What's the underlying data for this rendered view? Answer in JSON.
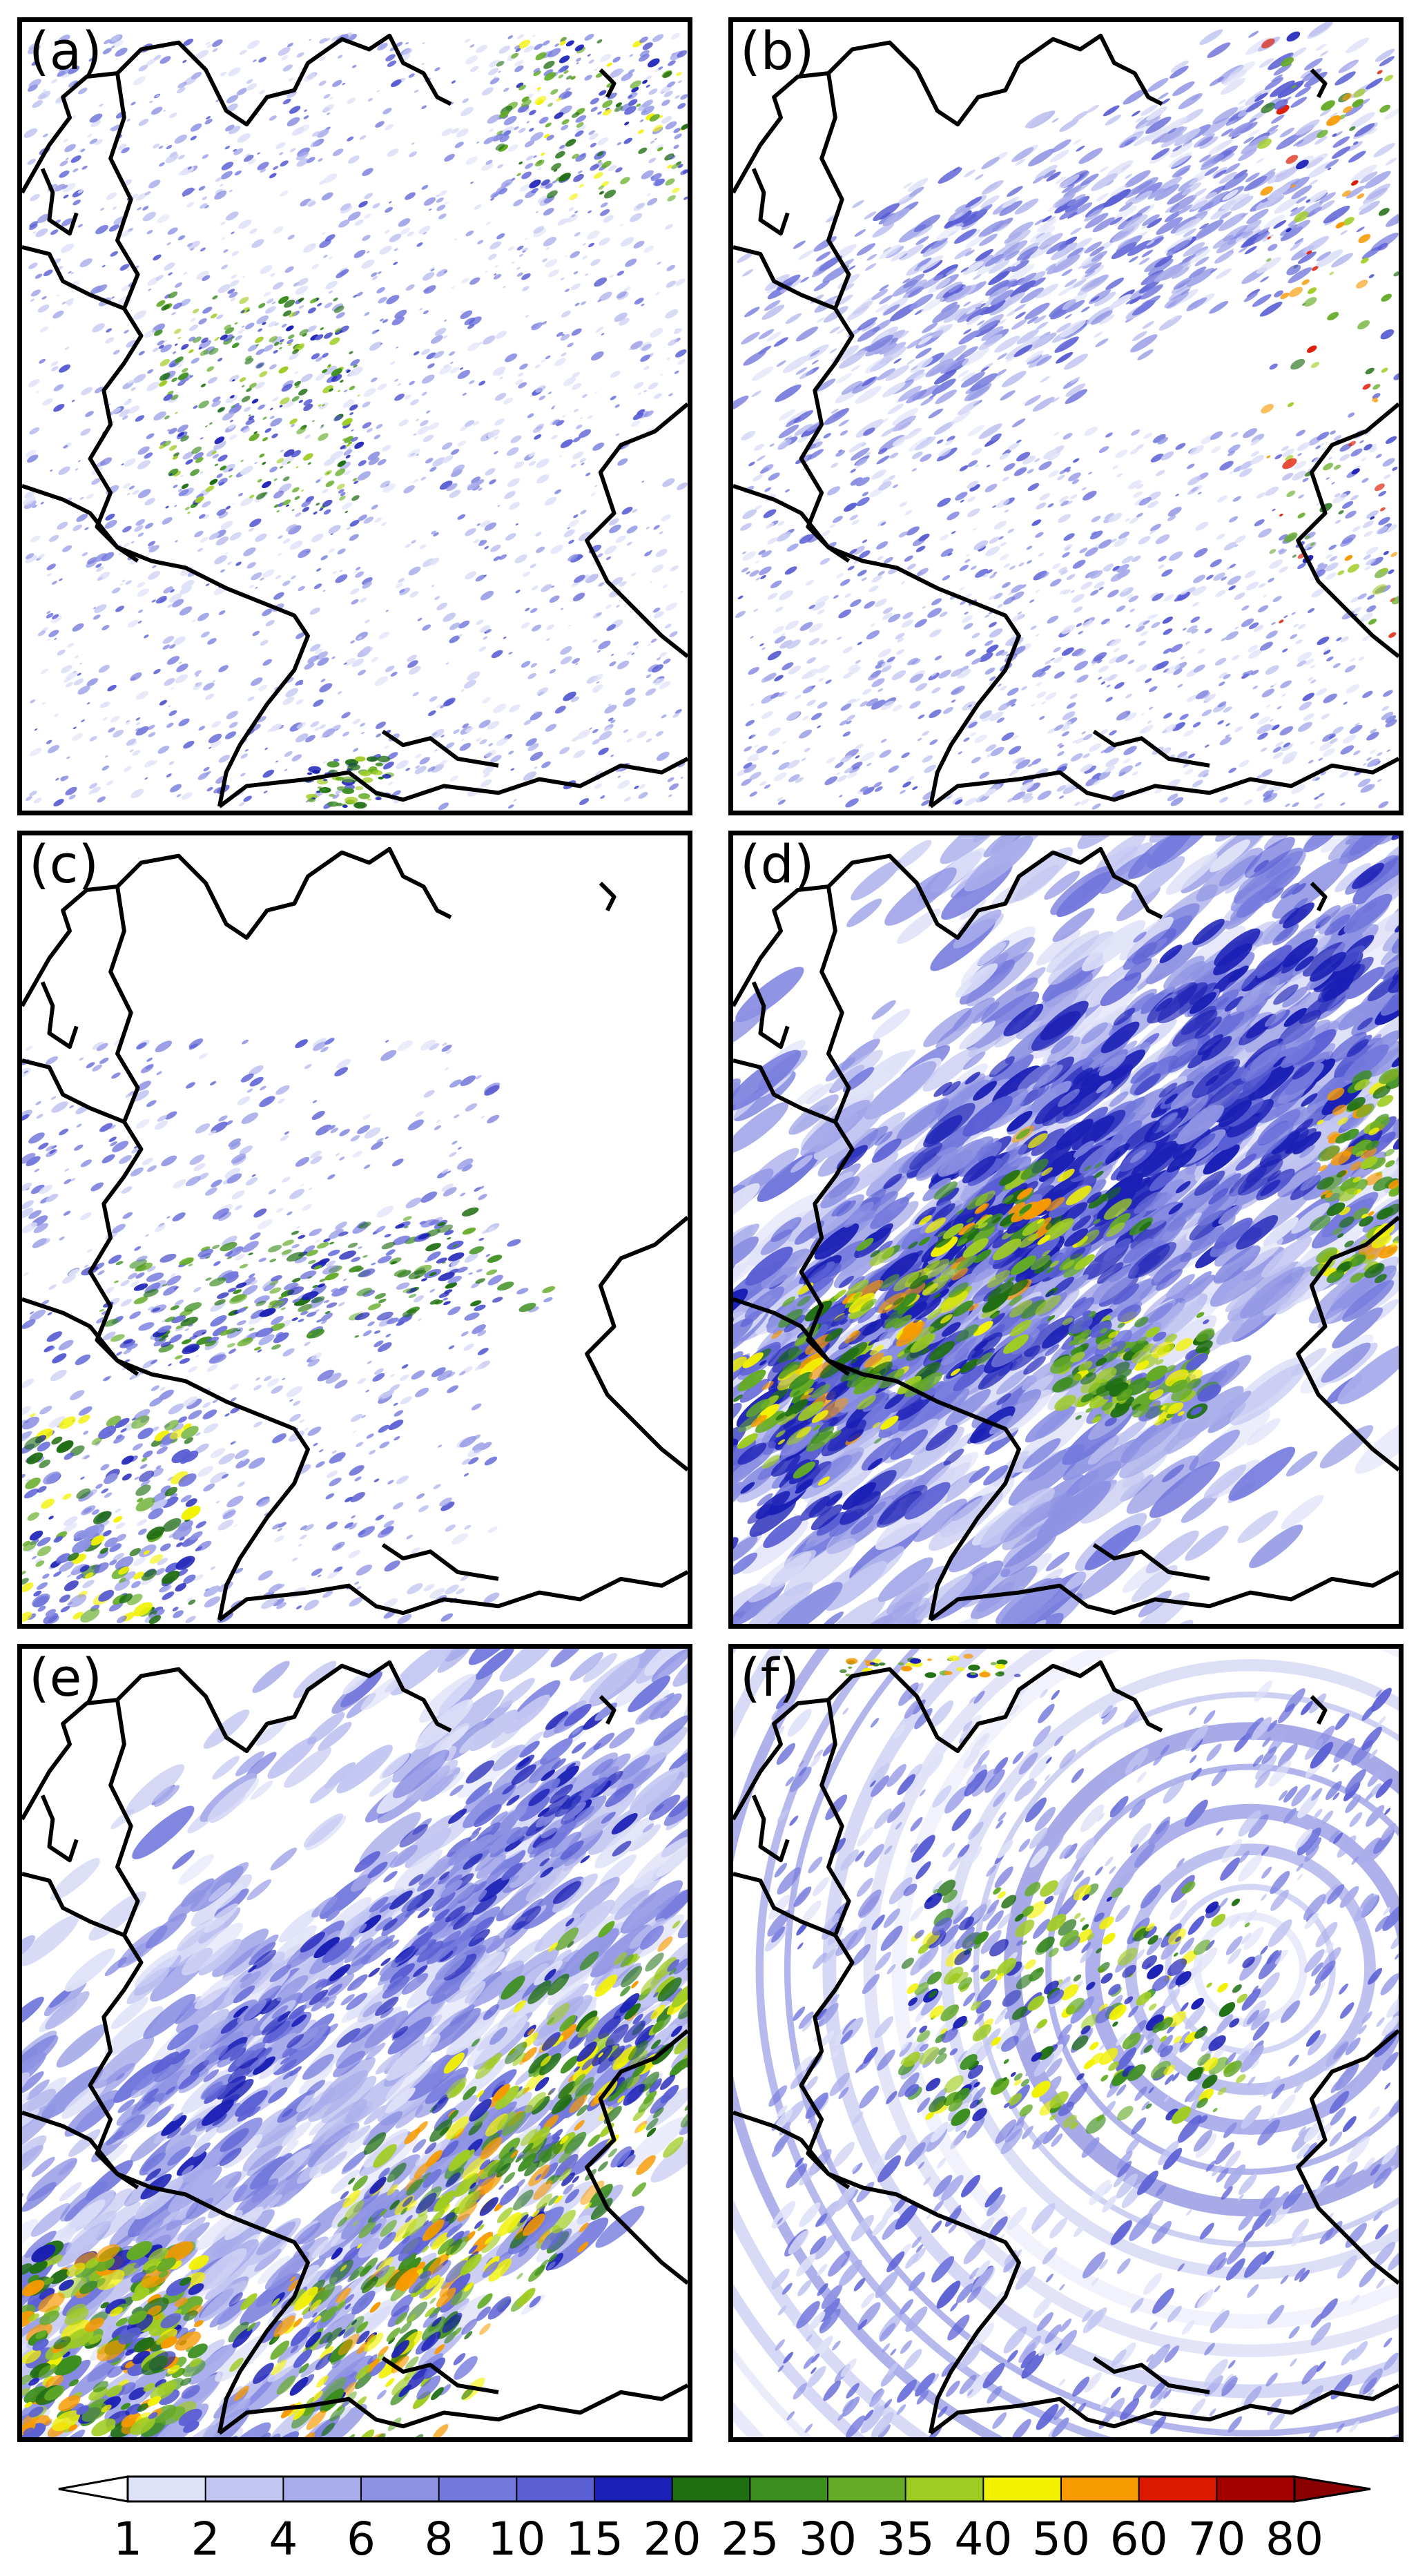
{
  "panels": [
    {
      "label": "(a)",
      "pattern": "scattered-cells"
    },
    {
      "label": "(b)",
      "pattern": "scattered-streaks"
    },
    {
      "label": "(c)",
      "pattern": "sparse-southwest"
    },
    {
      "label": "(d)",
      "pattern": "southwest-northeast-band"
    },
    {
      "label": "(e)",
      "pattern": "southwest-northeast-band-east-maximum"
    },
    {
      "label": "(f)",
      "pattern": "radar-rings-northeast"
    }
  ],
  "colorbar": {
    "ticks": [
      "1",
      "2",
      "4",
      "6",
      "8",
      "10",
      "15",
      "20",
      "25",
      "30",
      "35",
      "40",
      "50",
      "60",
      "70",
      "80"
    ],
    "colors": [
      "#dfe1f8",
      "#c3c6f1",
      "#a8acea",
      "#8d92e3",
      "#7278dc",
      "#5a5fd4",
      "#1a1fb5",
      "#1f6e12",
      "#3c8e1f",
      "#64ab26",
      "#9fcc22",
      "#f2f200",
      "#f79a00",
      "#dd1a00",
      "#a30000"
    ],
    "under_color": "#ffffff",
    "over_color": "#8a0000",
    "extend": "both"
  },
  "map_features": [
    "country-borders",
    "coastline"
  ]
}
